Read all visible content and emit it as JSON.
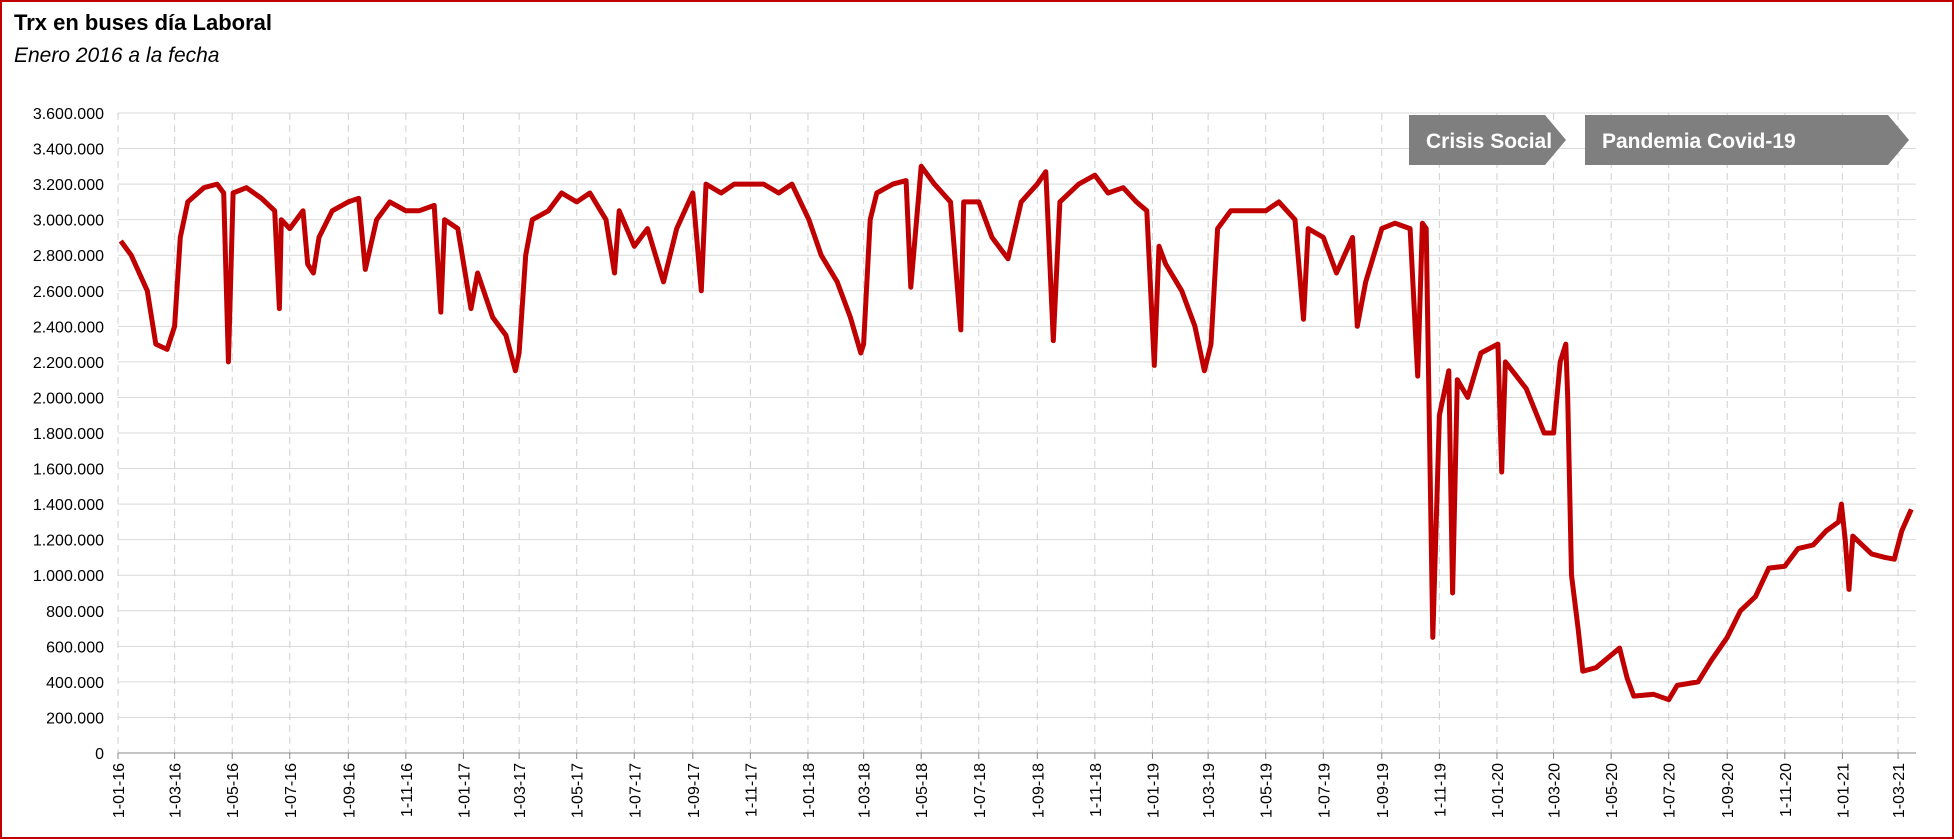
{
  "chart_data": {
    "type": "line",
    "title": "Trx en buses día Laboral",
    "subtitle": "Enero 2016 a la fecha",
    "annotations": [
      "Crisis Social",
      "Pandemia Covid-19"
    ],
    "grid": true,
    "series": [
      {
        "color": "#c00000",
        "x": [
          "2016-01-04",
          "2016-01-15",
          "2016-02-01",
          "2016-02-10",
          "2016-02-22",
          "2016-03-01",
          "2016-03-07",
          "2016-03-15",
          "2016-04-01",
          "2016-04-15",
          "2016-04-22",
          "2016-04-27",
          "2016-05-02",
          "2016-05-16",
          "2016-06-01",
          "2016-06-15",
          "2016-06-20",
          "2016-06-22",
          "2016-07-01",
          "2016-07-15",
          "2016-07-20",
          "2016-07-26",
          "2016-08-01",
          "2016-08-15",
          "2016-09-01",
          "2016-09-12",
          "2016-09-19",
          "2016-10-01",
          "2016-10-15",
          "2016-11-01",
          "2016-11-15",
          "2016-12-01",
          "2016-12-08",
          "2016-12-12",
          "2016-12-26",
          "2017-01-09",
          "2017-01-16",
          "2017-02-01",
          "2017-02-15",
          "2017-02-25",
          "2017-03-01",
          "2017-03-08",
          "2017-03-15",
          "2017-04-01",
          "2017-04-15",
          "2017-05-01",
          "2017-05-15",
          "2017-06-01",
          "2017-06-10",
          "2017-06-15",
          "2017-07-01",
          "2017-07-15",
          "2017-08-01",
          "2017-08-15",
          "2017-09-01",
          "2017-09-10",
          "2017-09-15",
          "2017-10-01",
          "2017-10-15",
          "2017-11-01",
          "2017-11-15",
          "2017-12-01",
          "2017-12-15",
          "2018-01-02",
          "2018-01-15",
          "2018-02-01",
          "2018-02-15",
          "2018-02-26",
          "2018-03-01",
          "2018-03-08",
          "2018-03-15",
          "2018-04-01",
          "2018-04-15",
          "2018-04-20",
          "2018-05-01",
          "2018-05-15",
          "2018-06-01",
          "2018-06-12",
          "2018-06-15",
          "2018-07-01",
          "2018-07-15",
          "2018-08-01",
          "2018-08-15",
          "2018-09-01",
          "2018-09-10",
          "2018-09-18",
          "2018-09-25",
          "2018-10-15",
          "2018-11-01",
          "2018-11-15",
          "2018-12-01",
          "2018-12-15",
          "2018-12-26",
          "2019-01-03",
          "2019-01-08",
          "2019-01-15",
          "2019-02-01",
          "2019-02-15",
          "2019-02-25",
          "2019-03-04",
          "2019-03-11",
          "2019-03-25",
          "2019-04-15",
          "2019-05-01",
          "2019-05-15",
          "2019-06-01",
          "2019-06-10",
          "2019-06-15",
          "2019-07-01",
          "2019-07-15",
          "2019-08-01",
          "2019-08-06",
          "2019-08-15",
          "2019-09-01",
          "2019-09-15",
          "2019-10-01",
          "2019-10-09",
          "2019-10-14",
          "2019-10-18",
          "2019-10-25",
          "2019-11-01",
          "2019-11-11",
          "2019-11-15",
          "2019-11-20",
          "2019-12-01",
          "2019-12-15",
          "2020-01-02",
          "2020-01-06",
          "2020-01-10",
          "2020-02-01",
          "2020-02-20",
          "2020-03-01",
          "2020-03-08",
          "2020-03-14",
          "2020-03-16",
          "2020-03-20",
          "2020-03-27",
          "2020-04-01",
          "2020-04-15",
          "2020-05-01",
          "2020-05-10",
          "2020-05-18",
          "2020-05-25",
          "2020-06-15",
          "2020-07-01",
          "2020-07-10",
          "2020-08-01",
          "2020-08-15",
          "2020-09-01",
          "2020-09-15",
          "2020-10-01",
          "2020-10-15",
          "2020-11-01",
          "2020-11-15",
          "2020-12-01",
          "2020-12-15",
          "2020-12-28",
          "2020-12-31",
          "2021-01-04",
          "2021-01-08",
          "2021-01-12",
          "2021-02-01",
          "2021-02-15",
          "2021-02-25",
          "2021-03-05",
          "2021-03-15"
        ],
        "values": [
          2880000,
          2800000,
          2600000,
          2300000,
          2270000,
          2400000,
          2900000,
          3100000,
          3180000,
          3200000,
          3150000,
          2200000,
          3150000,
          3180000,
          3120000,
          3050000,
          2500000,
          3000000,
          2950000,
          3050000,
          2750000,
          2700000,
          2900000,
          3050000,
          3100000,
          3120000,
          2720000,
          3000000,
          3100000,
          3050000,
          3050000,
          3080000,
          2480000,
          3000000,
          2950000,
          2500000,
          2700000,
          2450000,
          2350000,
          2150000,
          2250000,
          2800000,
          3000000,
          3050000,
          3150000,
          3100000,
          3150000,
          3000000,
          2700000,
          3050000,
          2850000,
          2950000,
          2650000,
          2950000,
          3150000,
          2600000,
          3200000,
          3150000,
          3200000,
          3200000,
          3200000,
          3150000,
          3200000,
          3000000,
          2800000,
          2650000,
          2450000,
          2250000,
          2300000,
          3000000,
          3150000,
          3200000,
          3220000,
          2620000,
          3300000,
          3200000,
          3100000,
          2380000,
          3100000,
          3100000,
          2900000,
          2780000,
          3100000,
          3200000,
          3270000,
          2320000,
          3100000,
          3200000,
          3250000,
          3150000,
          3180000,
          3100000,
          3050000,
          2180000,
          2850000,
          2750000,
          2600000,
          2400000,
          2150000,
          2300000,
          2950000,
          3050000,
          3050000,
          3050000,
          3100000,
          3000000,
          2440000,
          2950000,
          2900000,
          2700000,
          2900000,
          2400000,
          2650000,
          2950000,
          2980000,
          2950000,
          2120000,
          2980000,
          2950000,
          650000,
          1900000,
          2150000,
          900000,
          2100000,
          2000000,
          2250000,
          2300000,
          1580000,
          2200000,
          2050000,
          1800000,
          1800000,
          2200000,
          2300000,
          2000000,
          1000000,
          700000,
          460000,
          480000,
          550000,
          590000,
          420000,
          320000,
          330000,
          300000,
          380000,
          400000,
          520000,
          650000,
          800000,
          880000,
          1040000,
          1050000,
          1150000,
          1170000,
          1250000,
          1300000,
          1400000,
          1200000,
          920000,
          1220000,
          1120000,
          1100000,
          1090000,
          1250000,
          1370000
        ]
      }
    ],
    "xlim": [
      "2016-01-01",
      "2021-03-20"
    ],
    "xticks": [
      {
        "value": "2016-01-01",
        "label": "1-01-16"
      },
      {
        "value": "2016-03-01",
        "label": "1-03-16"
      },
      {
        "value": "2016-05-01",
        "label": "1-05-16"
      },
      {
        "value": "2016-07-01",
        "label": "1-07-16"
      },
      {
        "value": "2016-09-01",
        "label": "1-09-16"
      },
      {
        "value": "2016-11-01",
        "label": "1-11-16"
      },
      {
        "value": "2017-01-01",
        "label": "1-01-17"
      },
      {
        "value": "2017-03-01",
        "label": "1-03-17"
      },
      {
        "value": "2017-05-01",
        "label": "1-05-17"
      },
      {
        "value": "2017-07-01",
        "label": "1-07-17"
      },
      {
        "value": "2017-09-01",
        "label": "1-09-17"
      },
      {
        "value": "2017-11-01",
        "label": "1-11-17"
      },
      {
        "value": "2018-01-01",
        "label": "1-01-18"
      },
      {
        "value": "2018-03-01",
        "label": "1-03-18"
      },
      {
        "value": "2018-05-01",
        "label": "1-05-18"
      },
      {
        "value": "2018-07-01",
        "label": "1-07-18"
      },
      {
        "value": "2018-09-01",
        "label": "1-09-18"
      },
      {
        "value": "2018-11-01",
        "label": "1-11-18"
      },
      {
        "value": "2019-01-01",
        "label": "1-01-19"
      },
      {
        "value": "2019-03-01",
        "label": "1-03-19"
      },
      {
        "value": "2019-05-01",
        "label": "1-05-19"
      },
      {
        "value": "2019-07-01",
        "label": "1-07-19"
      },
      {
        "value": "2019-09-01",
        "label": "1-09-19"
      },
      {
        "value": "2019-11-01",
        "label": "1-11-19"
      },
      {
        "value": "2020-01-01",
        "label": "1-01-20"
      },
      {
        "value": "2020-03-01",
        "label": "1-03-20"
      },
      {
        "value": "2020-05-01",
        "label": "1-05-20"
      },
      {
        "value": "2020-07-01",
        "label": "1-07-20"
      },
      {
        "value": "2020-09-01",
        "label": "1-09-20"
      },
      {
        "value": "2020-11-01",
        "label": "1-11-20"
      },
      {
        "value": "2021-01-01",
        "label": "1-01-21"
      },
      {
        "value": "2021-03-01",
        "label": "1-03-21"
      }
    ],
    "ylim": [
      0,
      3600000
    ],
    "yticks": [
      0,
      {
        "value": 200000,
        "label": "200.000"
      },
      {
        "value": 400000,
        "label": "400.000"
      },
      {
        "value": 600000,
        "label": "600.000"
      },
      {
        "value": 800000,
        "label": "800.000"
      },
      {
        "value": 1000000,
        "label": "1.000.000"
      },
      {
        "value": 1200000,
        "label": "1.200.000"
      },
      {
        "value": 1400000,
        "label": "1.400.000"
      },
      {
        "value": 1600000,
        "label": "1.600.000"
      },
      {
        "value": 1800000,
        "label": "1.800.000"
      },
      {
        "value": 2000000,
        "label": "2.000.000"
      },
      {
        "value": 2200000,
        "label": "2.200.000"
      },
      {
        "value": 2400000,
        "label": "2.400.000"
      },
      {
        "value": 2600000,
        "label": "2.600.000"
      },
      {
        "value": 2800000,
        "label": "2.800.000"
      },
      {
        "value": 3000000,
        "label": "3.000.000"
      },
      {
        "value": 3200000,
        "label": "3.200.000"
      },
      {
        "value": 3400000,
        "label": "3.400.000"
      },
      {
        "value": 3600000,
        "label": "3.600.000"
      }
    ]
  }
}
